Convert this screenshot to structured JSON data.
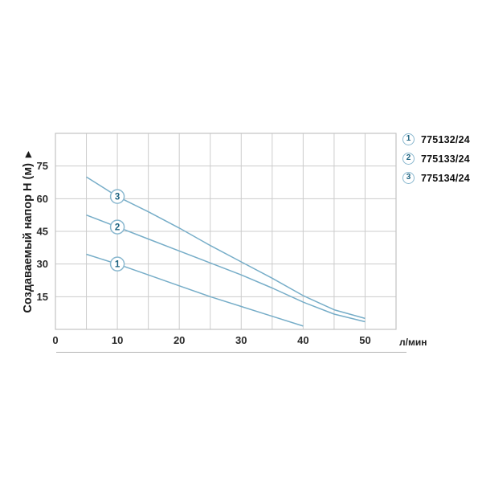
{
  "chart_data": {
    "type": "line",
    "title": "",
    "xlabel": "л/мин",
    "ylabel": "Создаваемый напор H (м)",
    "xlim": [
      0,
      55
    ],
    "ylim": [
      0,
      90
    ],
    "x_ticks": [
      0,
      10,
      20,
      30,
      40,
      50
    ],
    "y_ticks": [
      15,
      30,
      45,
      60,
      75
    ],
    "grid": true,
    "grid_step_x": 5,
    "grid_step_y": 15,
    "legend_position": "top-right",
    "series": [
      {
        "num": "1",
        "name": "775132/24",
        "marker_x": 10,
        "points": [
          [
            5,
            34.5
          ],
          [
            10,
            30
          ],
          [
            15,
            25
          ],
          [
            20,
            20
          ],
          [
            25,
            15
          ],
          [
            30,
            10.5
          ],
          [
            35,
            6
          ],
          [
            40,
            1.5
          ]
        ]
      },
      {
        "num": "2",
        "name": "775133/24",
        "marker_x": 10,
        "points": [
          [
            5,
            52.5
          ],
          [
            10,
            47
          ],
          [
            15,
            41.5
          ],
          [
            20,
            36
          ],
          [
            25,
            30.5
          ],
          [
            30,
            25
          ],
          [
            35,
            19
          ],
          [
            40,
            12.5
          ],
          [
            45,
            7
          ],
          [
            50,
            3.5
          ]
        ]
      },
      {
        "num": "3",
        "name": "775134/24",
        "marker_x": 10,
        "points": [
          [
            5,
            70
          ],
          [
            10,
            61
          ],
          [
            15,
            54
          ],
          [
            20,
            46.5
          ],
          [
            25,
            38.5
          ],
          [
            30,
            31
          ],
          [
            35,
            23.5
          ],
          [
            40,
            15.5
          ],
          [
            45,
            9
          ],
          [
            50,
            5
          ]
        ]
      }
    ]
  },
  "legend": {
    "items": [
      {
        "num": "1",
        "label": "775132/24"
      },
      {
        "num": "2",
        "label": "775133/24"
      },
      {
        "num": "3",
        "label": "775134/24"
      }
    ]
  },
  "icons": {
    "y_axis_arrow": "▶"
  },
  "colors": {
    "curve": "#76adc8",
    "marker_ring": "#8ab8cf",
    "marker_number": "#1d6380",
    "grid_line": "#cccccc",
    "plot_border": "#c3c3c3",
    "tick_text": "#2b2b2b",
    "legend_text": "#111111",
    "baseline_rule": "#b3b3b3"
  }
}
